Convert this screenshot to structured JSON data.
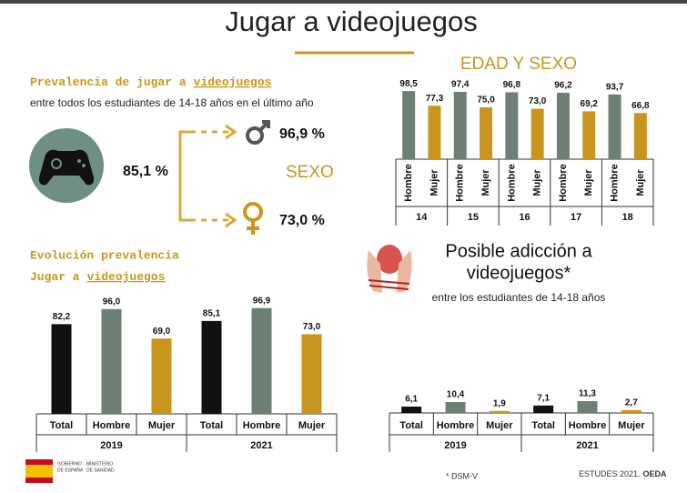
{
  "header": {
    "title": "Jugar a videojuegos"
  },
  "prevalence": {
    "heading": [
      "Prevalencia de jugar a",
      "videojuegos"
    ],
    "subtitle": "entre todos los estudiantes de 14-18 años en el último año",
    "total": "85,1 %",
    "male": "96,9 %",
    "female": "73,0 %",
    "label": "SEXO"
  },
  "chart_data": [
    {
      "type": "bar",
      "title": "EDAD Y SEXO",
      "categories": [
        "14",
        "15",
        "16",
        "17",
        "18"
      ],
      "ylim": [
        0,
        100
      ],
      "series": [
        {
          "name": "Hombre",
          "color": "#6e8076",
          "values": [
            98.5,
            97.4,
            96.8,
            96.2,
            93.7
          ],
          "value_labels": [
            "98,5",
            "97,4",
            "96,8",
            "96,2",
            "93,7"
          ]
        },
        {
          "name": "Mujer",
          "color": "#c8961e",
          "values": [
            77.3,
            75.0,
            73.0,
            69.2,
            66.8
          ],
          "value_labels": [
            "77,3",
            "75,0",
            "73,0",
            "69,2",
            "66,8"
          ]
        }
      ]
    },
    {
      "type": "bar",
      "title": "Evolución prevalencia",
      "subtitle": [
        "Jugar a",
        "videojuegos"
      ],
      "categories": [
        "2019",
        "2021"
      ],
      "ylim": [
        0,
        100
      ],
      "series": [
        {
          "name": "Total",
          "color": "#111111",
          "values": [
            82.2,
            85.1
          ],
          "value_labels": [
            "82,2",
            "85,1"
          ]
        },
        {
          "name": "Hombre",
          "color": "#6e8076",
          "values": [
            96.0,
            96.9
          ],
          "value_labels": [
            "96,0",
            "96,9"
          ]
        },
        {
          "name": "Mujer",
          "color": "#c8961e",
          "values": [
            69.0,
            73.0
          ],
          "value_labels": [
            "69,0",
            "73,0"
          ]
        }
      ]
    },
    {
      "type": "bar",
      "title": [
        "Posible adicción a",
        "videojuegos*"
      ],
      "subtitle": "entre los estudiantes de 14-18 años",
      "categories": [
        "2019",
        "2021"
      ],
      "ylim": [
        0,
        100
      ],
      "series": [
        {
          "name": "Total",
          "color": "#111111",
          "values": [
            6.1,
            7.1
          ],
          "value_labels": [
            "6,1",
            "7,1"
          ]
        },
        {
          "name": "Hombre",
          "color": "#6e8076",
          "values": [
            10.4,
            11.3
          ],
          "value_labels": [
            "10,4",
            "11,3"
          ]
        },
        {
          "name": "Mujer",
          "color": "#c8961e",
          "values": [
            1.9,
            2.7
          ],
          "value_labels": [
            "1,9",
            "2,7"
          ]
        }
      ]
    }
  ],
  "footer": {
    "logo": [
      "GOBIERNO",
      "DE ESPAÑA",
      "MINISTERIO",
      "DE SANIDAD"
    ],
    "note": "* DSM-V",
    "source": [
      "ESTUDES 2021.",
      "OEDA"
    ]
  }
}
